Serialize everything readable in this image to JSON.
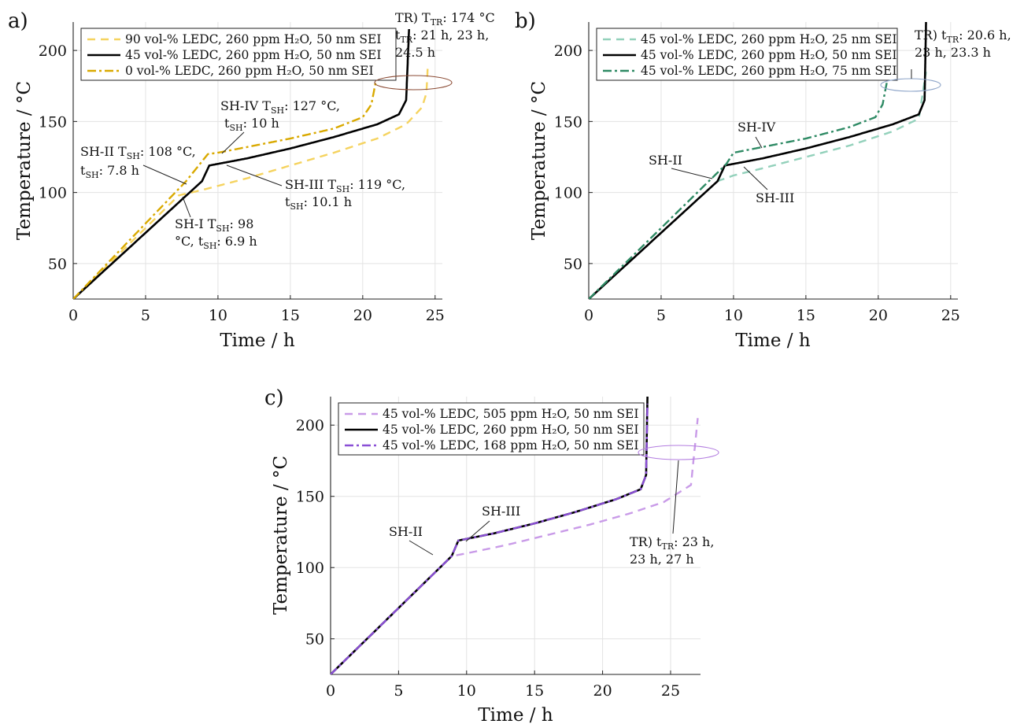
{
  "chart_data": [
    {
      "panel": "a)",
      "type": "line",
      "xlabel": "Time / h",
      "ylabel": "Temperature / °C",
      "xlim": [
        0,
        25.5
      ],
      "ylim": [
        25,
        220
      ],
      "xticks": [
        0,
        5,
        10,
        15,
        20,
        25
      ],
      "yticks": [
        50,
        100,
        150,
        200
      ],
      "grid": true,
      "legend_position": "top-left",
      "series": [
        {
          "name": "90 vol-% LEDC, 260 ppm H₂O, 50 nm SEI",
          "color": "#f5d35f",
          "style": "dashed",
          "x": [
            0,
            7.3,
            9,
            12,
            15,
            18,
            21,
            23,
            24.1,
            24.4,
            24.5
          ],
          "y": [
            25,
            98,
            102,
            110,
            119,
            128,
            138,
            148,
            160,
            170,
            190
          ]
        },
        {
          "name": "45 vol-% LEDC, 260 ppm H₂O, 50 nm SEI",
          "color": "#000000",
          "style": "solid",
          "x": [
            0,
            8.9,
            9.4,
            12,
            15,
            18,
            21,
            22.5,
            23.0,
            23.2
          ],
          "y": [
            25,
            108,
            119,
            124,
            131,
            139,
            148,
            155,
            165,
            215
          ]
        },
        {
          "name": "0 vol-% LEDC, 260 ppm H₂O, 50 nm SEI",
          "color": "#d9a900",
          "style": "dashdot",
          "x": [
            0,
            7.8,
            9.3,
            10,
            12,
            15,
            18,
            20,
            20.6,
            20.9
          ],
          "y": [
            25,
            108,
            127,
            128,
            132,
            138,
            145,
            153,
            162,
            178
          ]
        }
      ],
      "annotations": [
        {
          "label_main": "TR) T",
          "label_sub": "TR",
          "label_rest": ": 174 °C",
          "label_line2_main": "t",
          "label_line2_sub": "TR",
          "label_line2_rest": ": 21 h, 23 h,",
          "label_line3": "24.5 h"
        },
        {
          "label_main": "SH-IV T",
          "label_sub": "SH",
          "label_rest": ": 127 °C,",
          "label_line2_main": "t",
          "label_line2_sub": "SH",
          "label_line2_rest": ": 10 h"
        },
        {
          "label_main": "SH-II T",
          "label_sub": "SH",
          "label_rest": ": 108 °C,",
          "label_line2_main": "t",
          "label_line2_sub": "SH",
          "label_line2_rest": ": 7.8 h"
        },
        {
          "label_main": "SH-III T",
          "label_sub": "SH",
          "label_rest": ": 119 °C,",
          "label_line2_main": "t",
          "label_line2_sub": "SH",
          "label_line2_rest": ": 10.1 h"
        },
        {
          "label_main": "SH-I T",
          "label_sub": "SH",
          "label_rest": ":  98",
          "label_line2_main": "°C, t",
          "label_line2_sub": "SH",
          "label_line2_rest": ": 6.9 h"
        }
      ]
    },
    {
      "panel": "b)",
      "type": "line",
      "xlabel": "Time / h",
      "ylabel": "Temperature / °C",
      "xlim": [
        0,
        25.5
      ],
      "ylim": [
        25,
        220
      ],
      "xticks": [
        0,
        5,
        10,
        15,
        20,
        25
      ],
      "yticks": [
        50,
        100,
        150,
        200
      ],
      "grid": true,
      "legend_position": "top-left",
      "series": [
        {
          "name": "45 vol-% LEDC, 260 ppm H₂O, 25 nm SEI",
          "color": "#93d1bb",
          "style": "dashed",
          "x": [
            0,
            8.9,
            10,
            12,
            15,
            18,
            21,
            22.8,
            23.3
          ],
          "y": [
            25,
            108,
            112,
            117,
            125,
            133,
            143,
            152,
            185
          ]
        },
        {
          "name": "45 vol-% LEDC, 260 ppm H₂O, 50 nm SEI",
          "color": "#000000",
          "style": "solid",
          "x": [
            0,
            8.9,
            9.4,
            12,
            15,
            18,
            21,
            22.8,
            23.2,
            23.3
          ],
          "y": [
            25,
            108,
            119,
            124,
            131,
            139,
            148,
            155,
            165,
            220
          ]
        },
        {
          "name": "45 vol-% LEDC, 260 ppm H₂O, 75 nm SEI",
          "color": "#2e8a64",
          "style": "dashdot",
          "x": [
            0,
            9.5,
            10.0,
            12,
            15,
            18,
            19.8,
            20.3,
            20.6
          ],
          "y": [
            25,
            120,
            128,
            132,
            138,
            146,
            153,
            162,
            178
          ]
        }
      ],
      "annotations": [
        {
          "label_main": "TR) t",
          "label_sub": "TR",
          "label_rest": ": 20.6 h,",
          "label_line2": "23 h, 23.3 h"
        },
        {
          "label": "SH-IV"
        },
        {
          "label": "SH-II"
        },
        {
          "label": "SH-III"
        }
      ]
    },
    {
      "panel": "c)",
      "type": "line",
      "xlabel": "Time / h",
      "ylabel": "Temperature / °C",
      "xlim": [
        0,
        27.2
      ],
      "ylim": [
        25,
        220
      ],
      "xticks": [
        0,
        5,
        10,
        15,
        20,
        25
      ],
      "yticks": [
        50,
        100,
        150,
        200
      ],
      "grid": true,
      "legend_position": "top-left",
      "series": [
        {
          "name": "45 vol-% LEDC, 505 ppm H₂O, 50 nm SEI",
          "color": "#c99be8",
          "style": "dashed",
          "x": [
            0,
            8.9,
            10,
            13,
            16,
            19,
            22,
            24.5,
            26.5,
            27.0
          ],
          "y": [
            25,
            108,
            110,
            116,
            123,
            130,
            138,
            146,
            158,
            205
          ]
        },
        {
          "name": "45 vol-% LEDC, 260 ppm H₂O, 50 nm SEI",
          "color": "#000000",
          "style": "solid",
          "x": [
            0,
            8.9,
            9.4,
            12,
            15,
            18,
            21,
            22.8,
            23.2,
            23.3
          ],
          "y": [
            25,
            108,
            119,
            124,
            131,
            139,
            148,
            155,
            165,
            220
          ]
        },
        {
          "name": "45 vol-% LEDC, 168 ppm H₂O, 50 nm SEI",
          "color": "#8a4fd6",
          "style": "dashdot",
          "x": [
            0,
            8.9,
            9.4,
            12,
            15,
            18,
            21,
            22.8,
            23.2,
            23.3
          ],
          "y": [
            25,
            108,
            119,
            124,
            131,
            139,
            148,
            155,
            165,
            215
          ]
        }
      ],
      "annotations": [
        {
          "label": "SH-II"
        },
        {
          "label": "SH-III"
        },
        {
          "label_main": "TR) t",
          "label_sub": "TR",
          "label_rest": ": 23 h,",
          "label_line2": "23 h, 27 h"
        }
      ]
    }
  ]
}
